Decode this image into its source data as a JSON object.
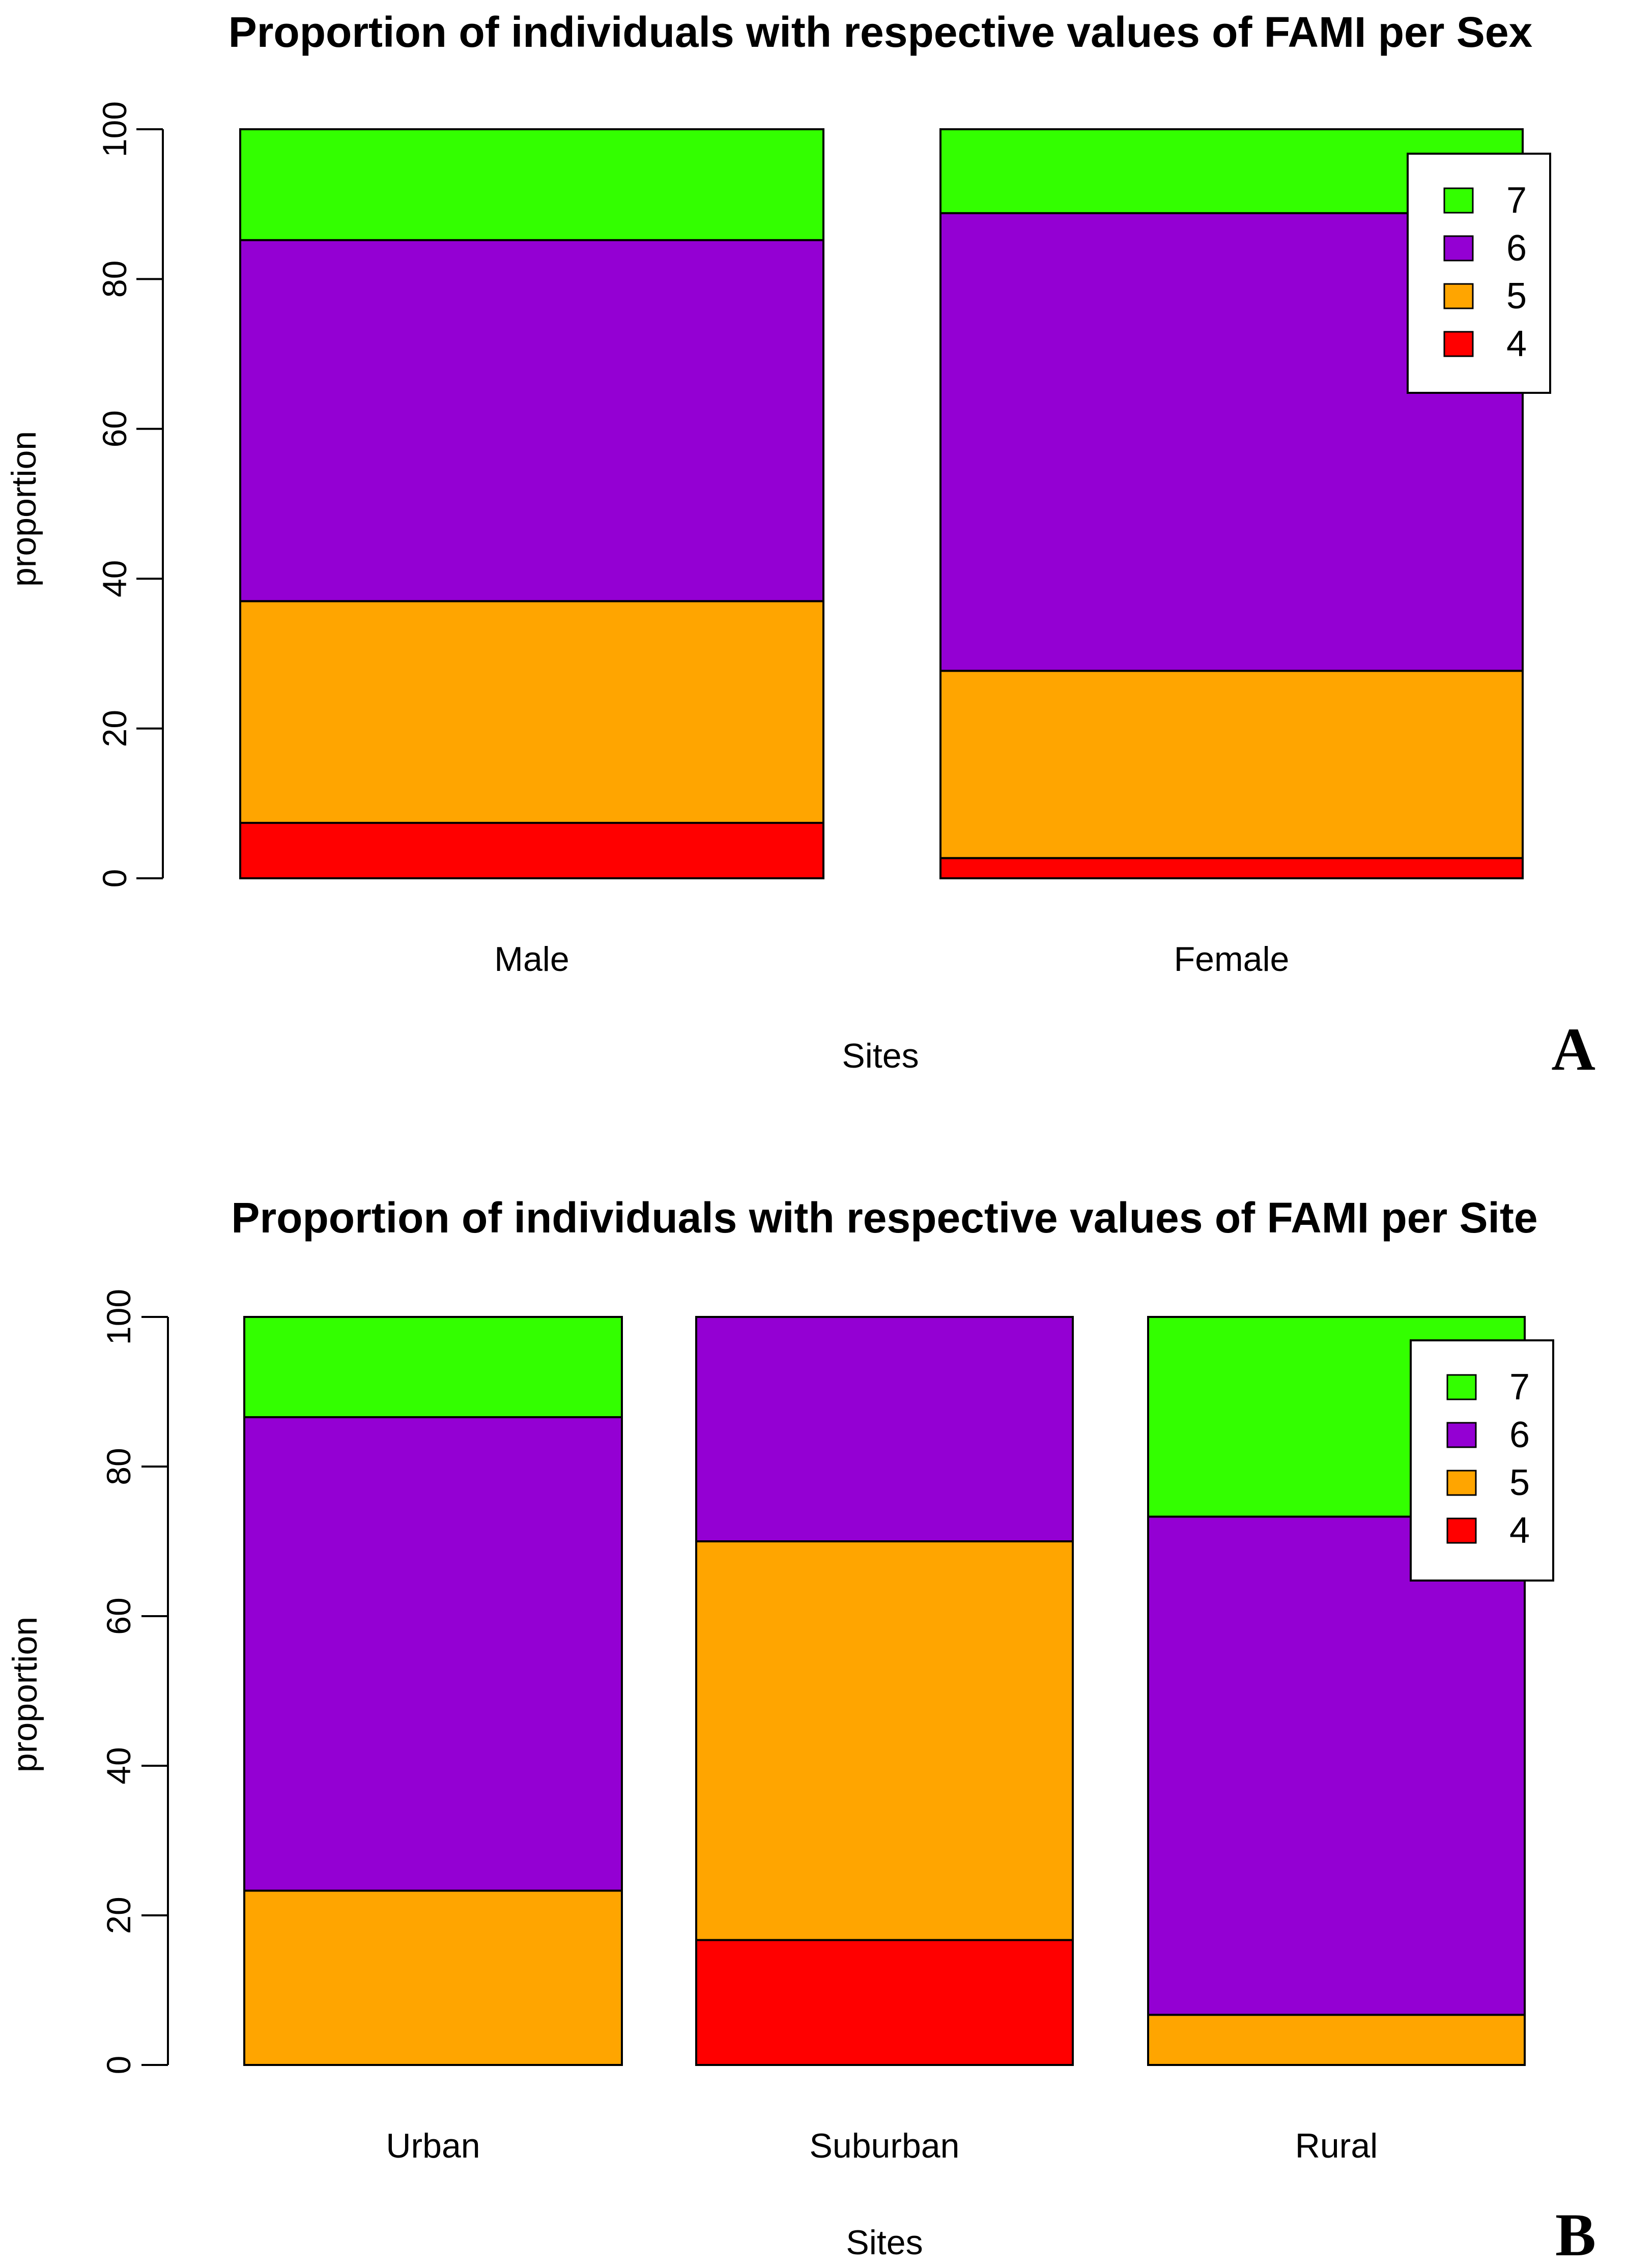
{
  "chart_data": [
    {
      "type": "bar",
      "stacked": true,
      "title": "Proportion of individuals with respective values of FAMI per Sex",
      "xlabel": "Sites",
      "ylabel": "proportion",
      "ylim": [
        0,
        100
      ],
      "yticks": [
        0,
        20,
        40,
        60,
        80,
        100
      ],
      "panel_label": "A",
      "legend_position": "top-right",
      "categories": [
        "Male",
        "Female"
      ],
      "series": [
        {
          "name": "4",
          "color": "#ff0000",
          "values": [
            7.4,
            2.7
          ]
        },
        {
          "name": "5",
          "color": "#ffa500",
          "values": [
            29.6,
            25.0
          ]
        },
        {
          "name": "6",
          "color": "#9400d3",
          "values": [
            48.2,
            61.1
          ]
        },
        {
          "name": "7",
          "color": "#33ff00",
          "values": [
            14.8,
            11.2
          ]
        }
      ],
      "legend_order": [
        "7",
        "6",
        "5",
        "4"
      ]
    },
    {
      "type": "bar",
      "stacked": true,
      "title": "Proportion of individuals with respective values of FAMI per Site",
      "xlabel": "Sites",
      "ylabel": "proportion",
      "ylim": [
        0,
        100
      ],
      "yticks": [
        0,
        20,
        40,
        60,
        80,
        100
      ],
      "panel_label": "B",
      "legend_position": "top-right",
      "categories": [
        "Urban",
        "Suburban",
        "Rural"
      ],
      "series": [
        {
          "name": "4",
          "color": "#ff0000",
          "values": [
            0,
            16.7,
            0
          ]
        },
        {
          "name": "5",
          "color": "#ffa500",
          "values": [
            23.3,
            53.3,
            6.7
          ]
        },
        {
          "name": "6",
          "color": "#9400d3",
          "values": [
            63.3,
            30.0,
            66.6
          ]
        },
        {
          "name": "7",
          "color": "#33ff00",
          "values": [
            13.4,
            0,
            26.7
          ]
        }
      ],
      "legend_order": [
        "7",
        "6",
        "5",
        "4"
      ]
    }
  ]
}
